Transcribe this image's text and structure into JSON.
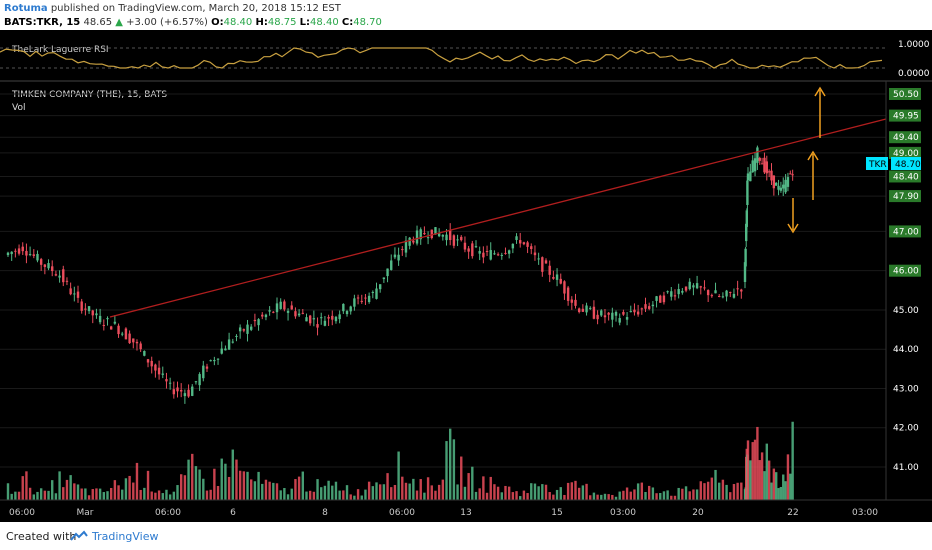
{
  "header": {
    "author": "Rotuma",
    "published": "published on TradingView.com, March 20, 2018 15:12 EST",
    "symbol": "BATS:TKR, 15",
    "price": "48.65",
    "change": "+3.00 (+6.57%)",
    "o_label": "O:",
    "o_val": "48.40",
    "h_label": "H:",
    "h_val": "48.75",
    "l_label": "L:",
    "l_val": "48.40",
    "c_label": "C:",
    "c_val": "48.70"
  },
  "indicator": {
    "name": "TheLark Laguerre RSI",
    "ticks": [
      "1.0000",
      "0.0000"
    ]
  },
  "main": {
    "title": "TIMKEN COMPANY (THE), 15, BATS",
    "vol_label": "Vol"
  },
  "footer": {
    "created_with": "Created with",
    "brand": "TradingView"
  },
  "colors": {
    "background": "#000000",
    "up": "#53b987",
    "down": "#eb4d5c",
    "trendline": "#b01e1e",
    "arrow": "#f0a020",
    "price_label_bg": "#2a7a2a",
    "current_label_bg": "#00e5ff"
  },
  "chart_data": {
    "type": "candlestick",
    "price_axis_ticks": [
      "50.50",
      "49.95",
      "49.40",
      "49.00",
      "48.40",
      "47.90",
      "47.00",
      "46.00",
      "45.00",
      "44.00",
      "43.00",
      "42.00",
      "41.00"
    ],
    "current_price_label": {
      "symbol": "TKR",
      "value": "48.70"
    },
    "x_tick_labels": [
      "06:00",
      "Mar",
      "06:00",
      "6",
      "8",
      "06:00",
      "13",
      "15",
      "03:00",
      "20",
      "22",
      "03:00"
    ],
    "close_path": [
      46.4,
      46.6,
      46.2,
      45.9,
      45.2,
      44.8,
      44.6,
      44.2,
      43.6,
      43.0,
      42.9,
      43.6,
      44.1,
      44.5,
      44.8,
      45.1,
      44.9,
      44.7,
      44.9,
      45.2,
      45.4,
      46.2,
      46.8,
      47.0,
      46.9,
      46.6,
      46.4,
      46.5,
      46.8,
      46.2,
      45.8,
      45.1,
      44.9,
      44.8,
      44.9,
      45.1,
      45.4,
      45.6,
      45.5,
      45.3,
      45.6,
      48.2,
      49.0,
      48.4,
      48.0,
      48.6
    ],
    "volumes": [
      0.15,
      0.25,
      0.08,
      0.3,
      0.12,
      0.1,
      0.2,
      0.35,
      0.18,
      0.1,
      0.4,
      0.22,
      0.55,
      0.3,
      0.2,
      0.12,
      0.28,
      0.15,
      0.2,
      0.1,
      0.3,
      0.45,
      0.25,
      0.18,
      0.6,
      0.3,
      0.22,
      0.15,
      0.1,
      0.25,
      0.12,
      0.18,
      0.1,
      0.08,
      0.15,
      0.2,
      0.1,
      0.12,
      0.3,
      0.18,
      0.25,
      0.55,
      0.9,
      0.4,
      0.3,
      0.85
    ]
  }
}
